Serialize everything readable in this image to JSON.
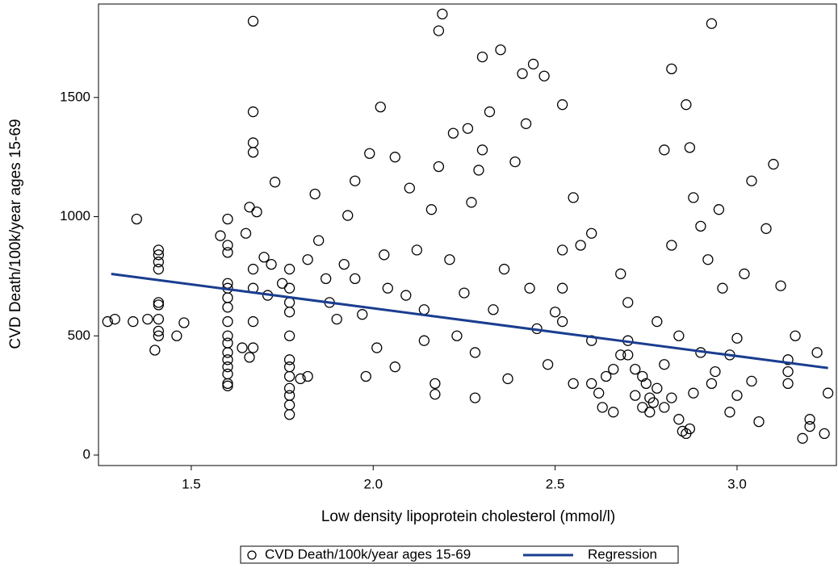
{
  "chart_data": {
    "type": "scatter",
    "xlabel": "Low density lipoprotein cholesterol (mmol/l)",
    "ylabel": "CVD Death/100k/year ages 15-69",
    "xlim": [
      1.245,
      3.273
    ],
    "ylim": [
      -44,
      1892
    ],
    "xticks": [
      1.5,
      {
        "value": 2,
        "label": "2.0"
      },
      2.5,
      {
        "value": 3,
        "label": "3.0"
      }
    ],
    "yticks": [
      0,
      500,
      1000,
      1500
    ],
    "grid": false,
    "legend": "bottom",
    "series": [
      {
        "name": "CVD Death/100k/year ages 15-69",
        "type": "scatter",
        "color": "#000000",
        "x": [
          1.27,
          1.29,
          1.35,
          1.34,
          1.38,
          1.4,
          1.41,
          1.41,
          1.41,
          1.41,
          1.41,
          1.41,
          1.41,
          1.41,
          1.41,
          1.46,
          1.48,
          1.58,
          1.6,
          1.6,
          1.6,
          1.6,
          1.6,
          1.6,
          1.6,
          1.6,
          1.6,
          1.6,
          1.6,
          1.6,
          1.6,
          1.6,
          1.6,
          1.6,
          1.64,
          1.65,
          1.67,
          1.67,
          1.67,
          1.67,
          1.66,
          1.68,
          1.67,
          1.67,
          1.67,
          1.67,
          1.66,
          1.7,
          1.71,
          1.73,
          1.72,
          1.75,
          1.77,
          1.77,
          1.77,
          1.77,
          1.77,
          1.77,
          1.77,
          1.77,
          1.77,
          1.77,
          1.77,
          1.77,
          1.8,
          1.82,
          1.82,
          1.84,
          1.85,
          1.87,
          1.88,
          1.9,
          1.92,
          1.93,
          1.95,
          1.95,
          1.97,
          1.98,
          1.99,
          2.01,
          2.02,
          2.03,
          2.04,
          2.06,
          2.06,
          2.09,
          2.1,
          2.12,
          2.14,
          2.14,
          2.16,
          2.18,
          2.17,
          2.17,
          2.18,
          2.19,
          2.21,
          2.22,
          2.23,
          2.25,
          2.26,
          2.27,
          2.28,
          2.28,
          2.29,
          2.3,
          2.3,
          2.32,
          2.33,
          2.35,
          2.36,
          2.37,
          2.39,
          2.41,
          2.42,
          2.43,
          2.44,
          2.45,
          2.47,
          2.48,
          2.5,
          2.52,
          2.52,
          2.52,
          2.52,
          2.55,
          2.55,
          2.57,
          2.6,
          2.6,
          2.63,
          2.66,
          2.68,
          2.7,
          2.7,
          2.7,
          2.72,
          2.74,
          2.75,
          2.76,
          2.77,
          2.78,
          2.8,
          2.82,
          2.82,
          2.84,
          2.85,
          2.86,
          2.87,
          2.86,
          2.87,
          2.88,
          2.9,
          2.92,
          2.93,
          2.93,
          2.95,
          2.96,
          2.98,
          3.0,
          3.02,
          3.04,
          3.06,
          3.08,
          3.1,
          3.12,
          3.14,
          3.14,
          3.14,
          3.16,
          3.18,
          3.2,
          3.2,
          3.22,
          3.24,
          3.25,
          2.6,
          2.62,
          2.64,
          2.66,
          2.68,
          2.72,
          2.74,
          2.76,
          2.78,
          2.8,
          2.8,
          2.82,
          2.84,
          2.88,
          2.9,
          2.94,
          2.98,
          3.0,
          3.04
        ],
        "values": [
          560,
          570,
          990,
          560,
          570,
          440,
          860,
          840,
          810,
          780,
          640,
          630,
          570,
          520,
          500,
          500,
          555,
          920,
          990,
          880,
          850,
          720,
          700,
          660,
          620,
          560,
          500,
          470,
          430,
          400,
          370,
          340,
          300,
          290,
          450,
          930,
          1820,
          1440,
          1310,
          1270,
          1040,
          1020,
          780,
          700,
          560,
          450,
          410,
          830,
          670,
          1145,
          800,
          720,
          780,
          700,
          640,
          600,
          500,
          400,
          370,
          330,
          280,
          250,
          210,
          170,
          320,
          330,
          820,
          1095,
          900,
          740,
          640,
          570,
          800,
          1005,
          1150,
          740,
          590,
          330,
          1265,
          450,
          1460,
          840,
          700,
          1250,
          370,
          670,
          1120,
          860,
          610,
          480,
          1030,
          1210,
          300,
          255,
          1780,
          1850,
          820,
          1350,
          500,
          680,
          1370,
          1060,
          430,
          240,
          1195,
          1280,
          1670,
          1440,
          610,
          1700,
          780,
          320,
          1230,
          1600,
          1390,
          700,
          1640,
          530,
          1590,
          380,
          600,
          1470,
          860,
          700,
          560,
          1080,
          300,
          880,
          930,
          480,
          200,
          360,
          760,
          640,
          480,
          420,
          250,
          200,
          300,
          240,
          220,
          560,
          1280,
          1620,
          880,
          500,
          100,
          90,
          110,
          1470,
          1290,
          1080,
          960,
          820,
          1810,
          300,
          1030,
          700,
          180,
          490,
          760,
          1150,
          140,
          950,
          1220,
          710,
          400,
          350,
          300,
          500,
          70,
          150,
          120,
          430,
          90,
          260,
          300,
          260,
          330,
          180,
          420,
          360,
          330,
          180,
          280,
          200,
          380,
          240,
          150,
          260,
          430,
          350,
          420,
          250,
          310
        ]
      },
      {
        "name": "Regression",
        "type": "line",
        "color": "#1a3d8f",
        "x": [
          1.28,
          3.25
        ],
        "values": [
          760,
          365
        ]
      }
    ]
  }
}
